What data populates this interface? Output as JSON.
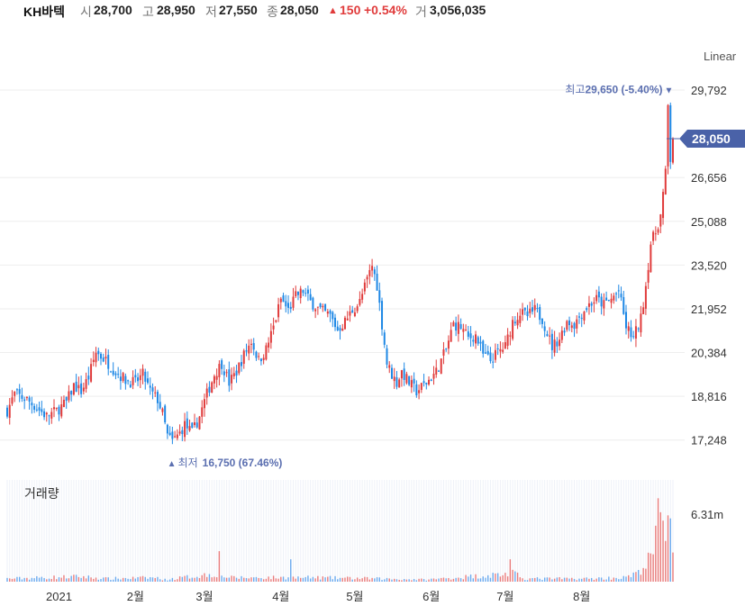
{
  "header": {
    "name": "KH바텍",
    "open_label": "시",
    "open": "28,700",
    "high_label": "고",
    "high": "28,950",
    "low_label": "저",
    "low": "27,550",
    "close_label": "종",
    "close": "28,050",
    "change_arrow": "▲",
    "change": "150",
    "change_pct": "+0.54%",
    "volume_label": "거",
    "volume": "3,056,035"
  },
  "colors": {
    "up": "#e03b3b",
    "down": "#1e88e5",
    "accent": "#4a62a8",
    "annotation": "#5b6fb0",
    "grid": "#eeeeee"
  },
  "chart_data": {
    "type": "candlestick",
    "scale_label": "Linear",
    "y_ticks": [
      "29,792",
      "28,050",
      "26,656",
      "25,088",
      "23,520",
      "21,952",
      "20,384",
      "18,816",
      "17,248"
    ],
    "ylim": [
      16400,
      30600
    ],
    "y_tick_values": [
      29792,
      26656,
      25088,
      23520,
      21952,
      20384,
      18816,
      17248
    ],
    "current_price": 28050,
    "current_label": "28,050",
    "x_labels": [
      "2021",
      "2월",
      "3월",
      "4월",
      "5월",
      "6월",
      "7월",
      "8월"
    ],
    "x_label_days": [
      21,
      52,
      80,
      111,
      141,
      172,
      202,
      233
    ],
    "day_range": [
      0,
      270
    ],
    "high_annotation": {
      "label": "최고",
      "value": "29,650 (-5.40%)",
      "marker": "▼",
      "day": 268,
      "price": 29650
    },
    "low_annotation": {
      "label": "최저",
      "value": "16,750 (67.46%)",
      "marker": "▲",
      "day": 66,
      "price": 16750
    },
    "volume_label": "거래량",
    "volume_tick": "6.31m",
    "volume_tick_value": 6310000,
    "close_keypoints": [
      [
        0,
        18300
      ],
      [
        3,
        18900
      ],
      [
        8,
        18700
      ],
      [
        12,
        18400
      ],
      [
        16,
        18100
      ],
      [
        20,
        18300
      ],
      [
        24,
        18600
      ],
      [
        27,
        19200
      ],
      [
        30,
        19000
      ],
      [
        33,
        19500
      ],
      [
        36,
        20400
      ],
      [
        40,
        20100
      ],
      [
        44,
        19700
      ],
      [
        48,
        19400
      ],
      [
        52,
        19300
      ],
      [
        55,
        19600
      ],
      [
        58,
        19000
      ],
      [
        61,
        18700
      ],
      [
        63,
        18200
      ],
      [
        65,
        17400
      ],
      [
        67,
        17200
      ],
      [
        70,
        17500
      ],
      [
        72,
        17800
      ],
      [
        75,
        17500
      ],
      [
        78,
        18100
      ],
      [
        81,
        18900
      ],
      [
        84,
        19600
      ],
      [
        87,
        20000
      ],
      [
        90,
        19300
      ],
      [
        93,
        19700
      ],
      [
        96,
        20300
      ],
      [
        99,
        20800
      ],
      [
        102,
        20100
      ],
      [
        105,
        20500
      ],
      [
        108,
        21300
      ],
      [
        111,
        22300
      ],
      [
        114,
        21900
      ],
      [
        117,
        22400
      ],
      [
        120,
        22600
      ],
      [
        123,
        22200
      ],
      [
        127,
        21900
      ],
      [
        131,
        21700
      ],
      [
        134,
        21200
      ],
      [
        137,
        21500
      ],
      [
        140,
        21900
      ],
      [
        143,
        22200
      ],
      [
        146,
        23000
      ],
      [
        148,
        23500
      ],
      [
        150,
        22800
      ],
      [
        152,
        21400
      ],
      [
        154,
        20000
      ],
      [
        156,
        19600
      ],
      [
        158,
        19300
      ],
      [
        160,
        19700
      ],
      [
        163,
        19300
      ],
      [
        166,
        19000
      ],
      [
        170,
        19300
      ],
      [
        174,
        19700
      ],
      [
        178,
        20500
      ],
      [
        181,
        21400
      ],
      [
        184,
        21300
      ],
      [
        187,
        20900
      ],
      [
        190,
        21000
      ],
      [
        193,
        20300
      ],
      [
        196,
        20100
      ],
      [
        199,
        20400
      ],
      [
        202,
        20600
      ],
      [
        205,
        21500
      ],
      [
        208,
        21800
      ],
      [
        211,
        21700
      ],
      [
        214,
        21900
      ],
      [
        217,
        21600
      ],
      [
        219,
        21100
      ],
      [
        221,
        20600
      ],
      [
        224,
        20900
      ],
      [
        227,
        21500
      ],
      [
        230,
        21400
      ],
      [
        233,
        21800
      ],
      [
        236,
        22100
      ],
      [
        239,
        22300
      ],
      [
        242,
        22100
      ],
      [
        245,
        22300
      ],
      [
        248,
        22600
      ],
      [
        251,
        21300
      ],
      [
        254,
        20900
      ],
      [
        257,
        21600
      ],
      [
        259,
        22800
      ],
      [
        261,
        24300
      ],
      [
        263,
        24700
      ],
      [
        265,
        25300
      ],
      [
        267,
        26800
      ],
      [
        268,
        29200
      ],
      [
        269,
        27300
      ],
      [
        270,
        28050
      ]
    ],
    "volume_keypoints": [
      [
        0,
        0.03
      ],
      [
        30,
        0.05
      ],
      [
        40,
        0.03
      ],
      [
        60,
        0.04
      ],
      [
        64,
        0.02
      ],
      [
        85,
        0.08
      ],
      [
        90,
        0.04
      ],
      [
        111,
        0.04
      ],
      [
        125,
        0.04
      ],
      [
        150,
        0.03
      ],
      [
        170,
        0.02
      ],
      [
        205,
        0.08
      ],
      [
        210,
        0.03
      ],
      [
        235,
        0.03
      ],
      [
        250,
        0.04
      ],
      [
        255,
        0.07
      ],
      [
        258,
        0.15
      ],
      [
        262,
        0.25
      ],
      [
        264,
        0.72
      ],
      [
        266,
        0.45
      ],
      [
        268,
        0.68
      ],
      [
        269,
        0.8
      ],
      [
        270,
        0.37
      ]
    ],
    "volume_spikes": [
      [
        86,
        0.3
      ],
      [
        115,
        0.22
      ],
      [
        204,
        0.22
      ],
      [
        263,
        0.55
      ],
      [
        266,
        0.6
      ]
    ]
  }
}
